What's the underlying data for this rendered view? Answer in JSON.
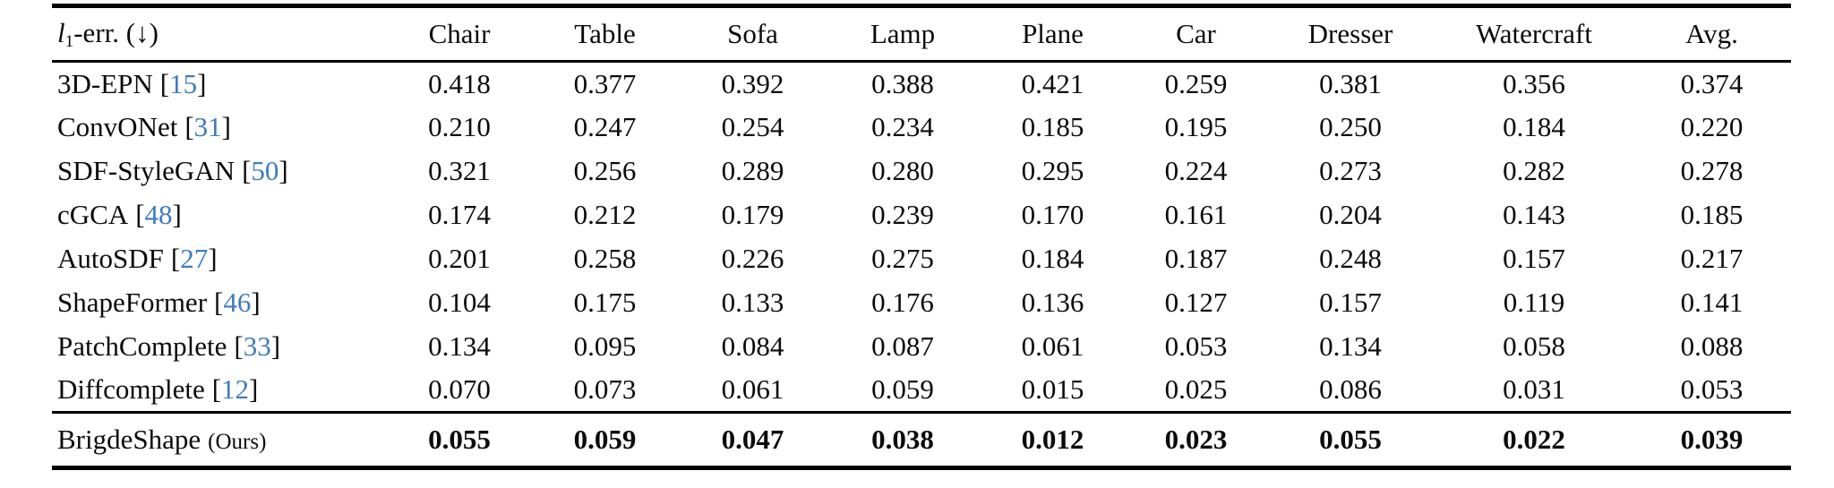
{
  "table": {
    "metric": {
      "symbol": "l",
      "subscript": "1",
      "rest": "-err. (↓)"
    },
    "cite_open": "[",
    "cite_close": "]",
    "columns": [
      "Chair",
      "Table",
      "Sofa",
      "Lamp",
      "Plane",
      "Car",
      "Dresser",
      "Watercraft",
      "Avg."
    ],
    "rows": [
      {
        "method": "3D-EPN",
        "ref": "15",
        "values": [
          "0.418",
          "0.377",
          "0.392",
          "0.388",
          "0.421",
          "0.259",
          "0.381",
          "0.356",
          "0.374"
        ]
      },
      {
        "method": "ConvONet",
        "ref": "31",
        "values": [
          "0.210",
          "0.247",
          "0.254",
          "0.234",
          "0.185",
          "0.195",
          "0.250",
          "0.184",
          "0.220"
        ]
      },
      {
        "method": "SDF-StyleGAN",
        "ref": "50",
        "values": [
          "0.321",
          "0.256",
          "0.289",
          "0.280",
          "0.295",
          "0.224",
          "0.273",
          "0.282",
          "0.278"
        ]
      },
      {
        "method": "cGCA",
        "ref": "48",
        "values": [
          "0.174",
          "0.212",
          "0.179",
          "0.239",
          "0.170",
          "0.161",
          "0.204",
          "0.143",
          "0.185"
        ]
      },
      {
        "method": "AutoSDF",
        "ref": "27",
        "values": [
          "0.201",
          "0.258",
          "0.226",
          "0.275",
          "0.184",
          "0.187",
          "0.248",
          "0.157",
          "0.217"
        ]
      },
      {
        "method": "ShapeFormer",
        "ref": "46",
        "values": [
          "0.104",
          "0.175",
          "0.133",
          "0.176",
          "0.136",
          "0.127",
          "0.157",
          "0.119",
          "0.141"
        ]
      },
      {
        "method": "PatchComplete",
        "ref": "33",
        "values": [
          "0.134",
          "0.095",
          "0.084",
          "0.087",
          "0.061",
          "0.053",
          "0.134",
          "0.058",
          "0.088"
        ]
      },
      {
        "method": "Diffcomplete",
        "ref": "12",
        "values": [
          "0.070",
          "0.073",
          "0.061",
          "0.059",
          "0.015",
          "0.025",
          "0.086",
          "0.031",
          "0.053"
        ]
      },
      {
        "method": "BrigdeShape",
        "suffix": "(Ours)",
        "bold": true,
        "values": [
          "0.055",
          "0.059",
          "0.047",
          "0.038",
          "0.012",
          "0.023",
          "0.055",
          "0.022",
          "0.039"
        ]
      }
    ],
    "accent_citation_color": "#3e7bbf"
  }
}
